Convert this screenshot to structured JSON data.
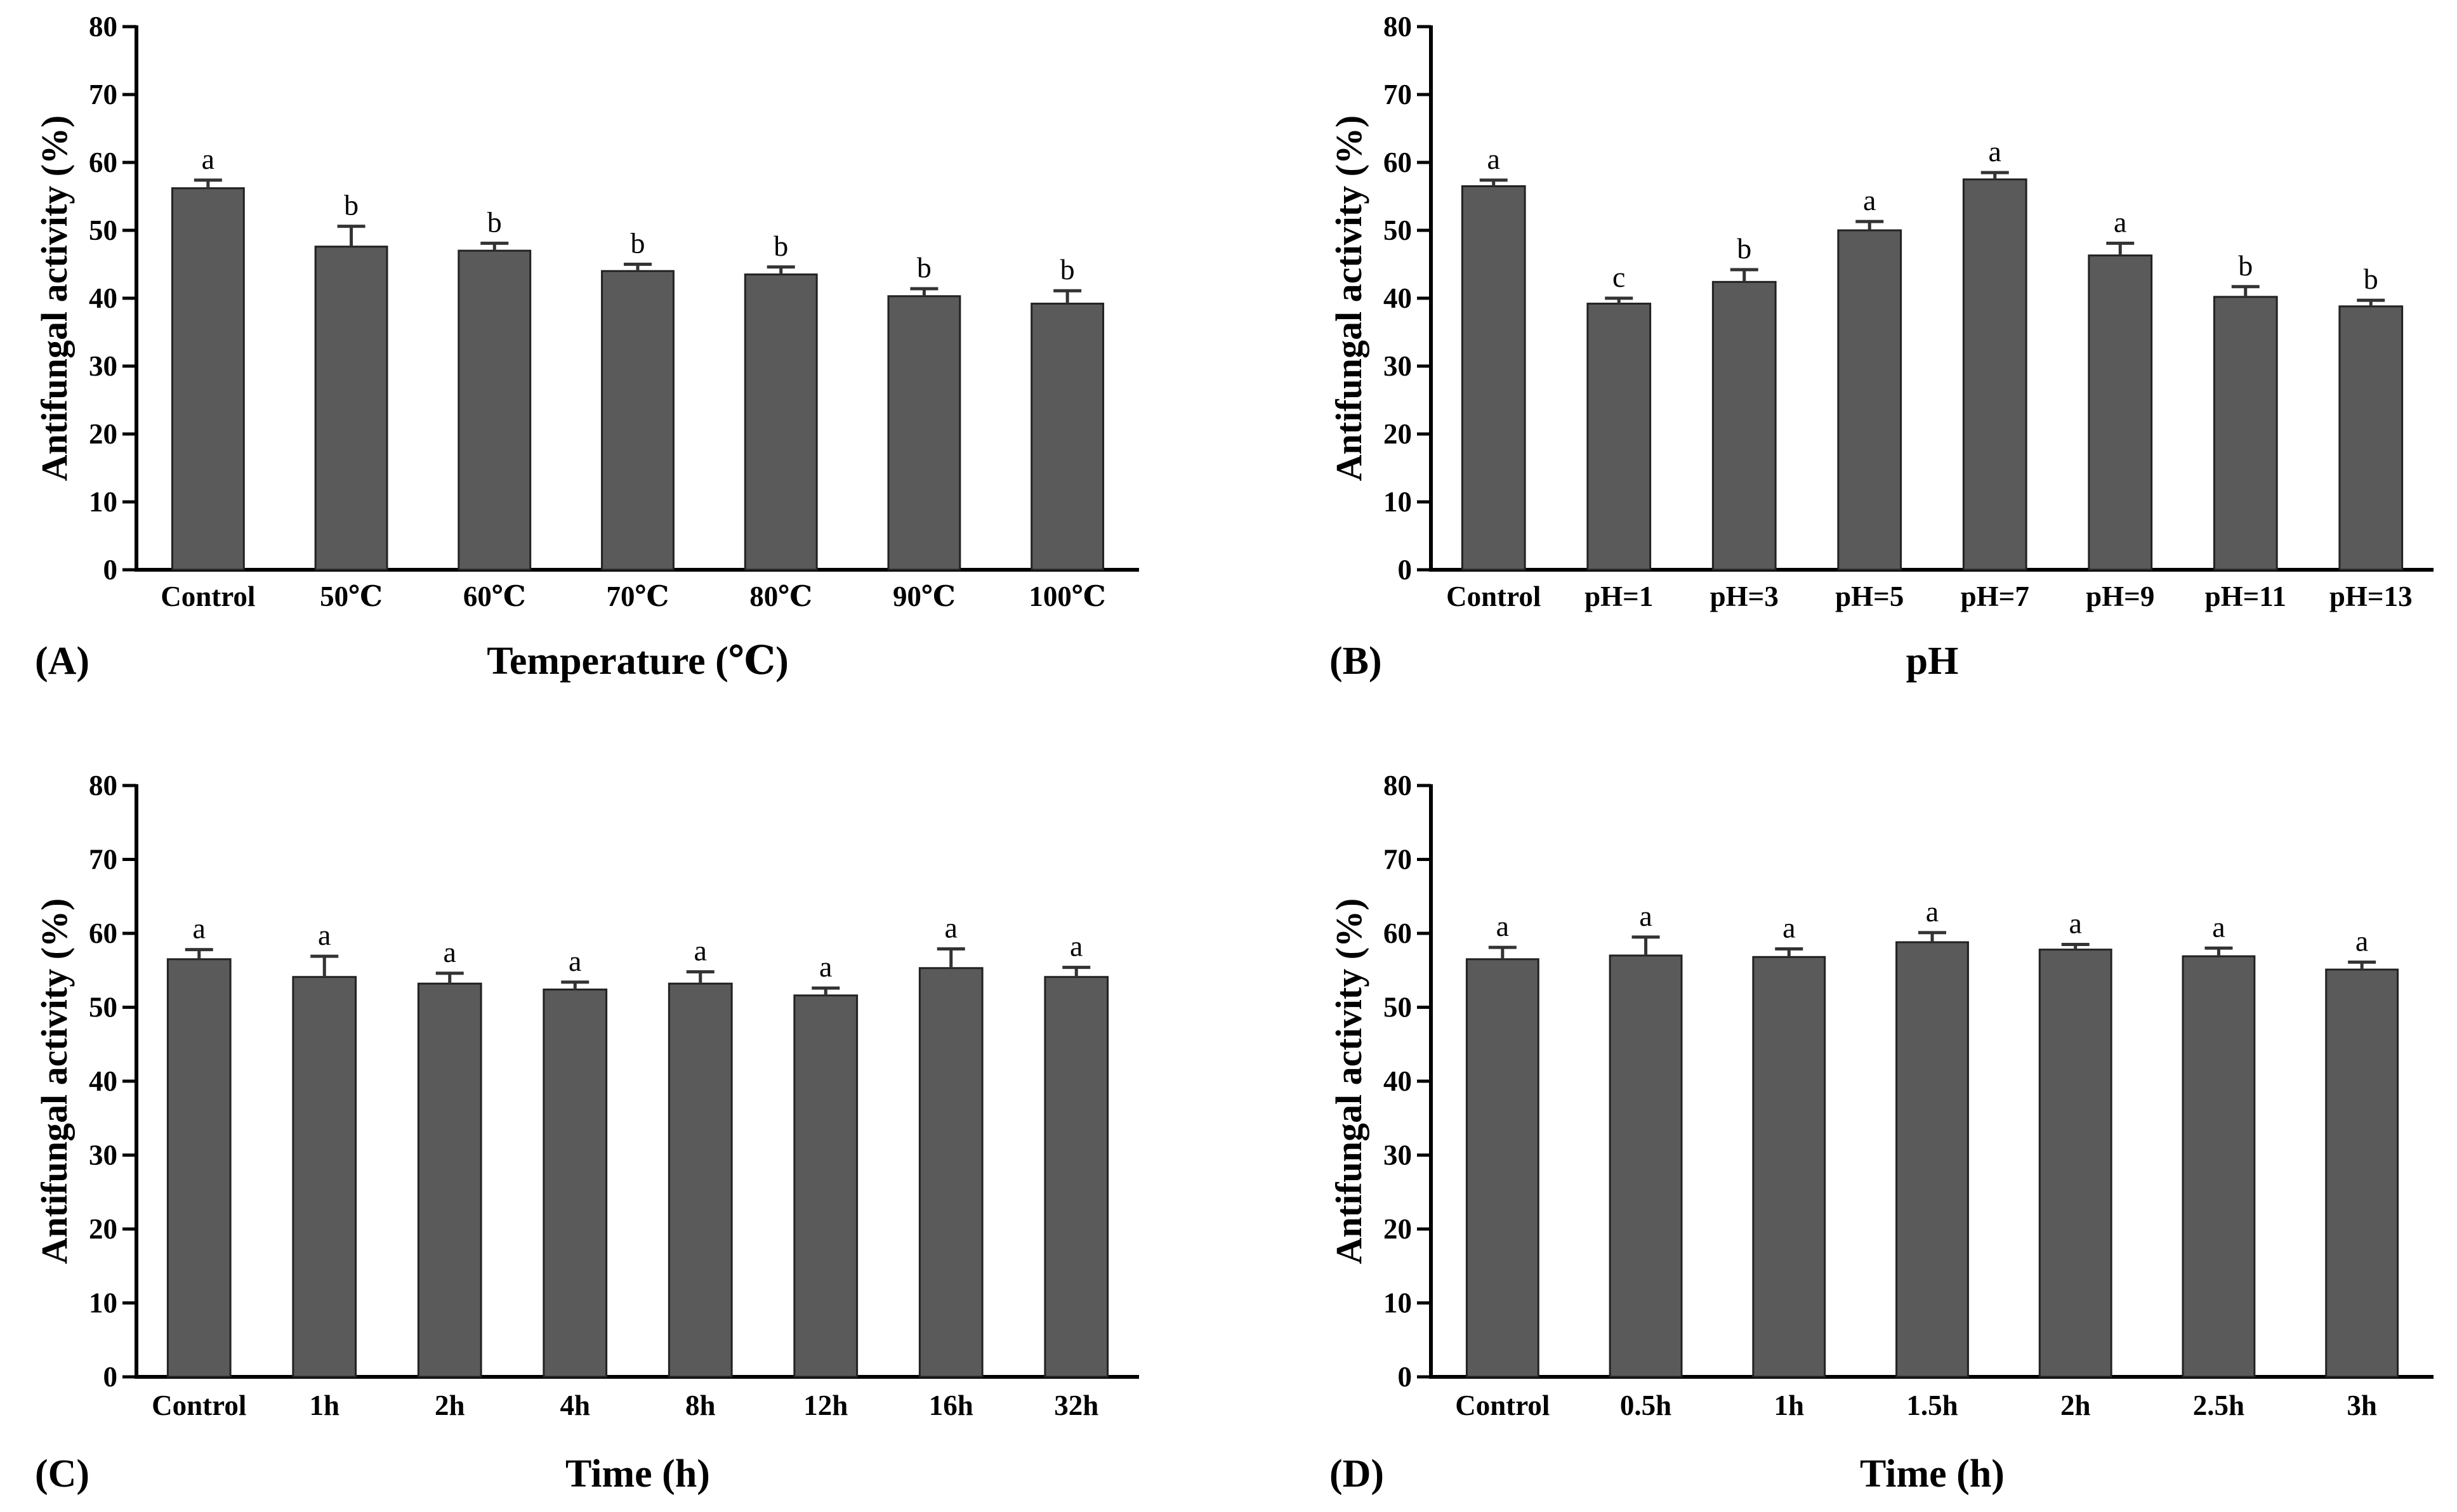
{
  "colors": {
    "bar": "#5a5a5a",
    "axis": "#000000",
    "error": "#333333"
  },
  "chart_data": [
    {
      "panel": "(A)",
      "type": "bar",
      "categories": [
        "Control",
        "50℃",
        "60℃",
        "70℃",
        "80℃",
        "90℃",
        "100℃"
      ],
      "values": [
        56.2,
        47.6,
        47.0,
        44.0,
        43.5,
        40.3,
        39.2
      ],
      "errors": [
        1.2,
        3.0,
        1.1,
        1.0,
        1.1,
        1.1,
        1.9
      ],
      "significance": [
        "a",
        "b",
        "b",
        "b",
        "b",
        "b",
        "b"
      ],
      "xlabel": "Temperature (℃)",
      "ylabel": "Antifungal activity (%)",
      "ylim": [
        0,
        80
      ],
      "yticks": [
        "0",
        "10",
        "20",
        "30",
        "40",
        "50",
        "60",
        "70",
        "80"
      ]
    },
    {
      "panel": "(B)",
      "type": "bar",
      "categories": [
        "Control",
        "pH=1",
        "pH=3",
        "pH=5",
        "pH=7",
        "pH=9",
        "pH=11",
        "pH=13"
      ],
      "values": [
        56.5,
        39.2,
        42.4,
        50.0,
        57.5,
        46.3,
        40.2,
        38.8
      ],
      "errors": [
        0.9,
        0.8,
        1.8,
        1.3,
        1.0,
        1.8,
        1.5,
        0.9
      ],
      "significance": [
        "a",
        "c",
        "b",
        "a",
        "a",
        "a",
        "b",
        "b"
      ],
      "xlabel": "pH",
      "ylabel": "Antifungal activity (%)",
      "ylim": [
        0,
        80
      ],
      "yticks": [
        "0",
        "10",
        "20",
        "30",
        "40",
        "50",
        "60",
        "70",
        "80"
      ]
    },
    {
      "panel": "(C)",
      "type": "bar",
      "categories": [
        "Control",
        "1h",
        "2h",
        "4h",
        "8h",
        "12h",
        "16h",
        "32h"
      ],
      "values": [
        56.5,
        54.1,
        53.2,
        52.4,
        53.2,
        51.6,
        55.3,
        54.1
      ],
      "errors": [
        1.3,
        2.8,
        1.4,
        1.0,
        1.6,
        1.0,
        2.6,
        1.3
      ],
      "significance": [
        "a",
        "a",
        "a",
        "a",
        "a",
        "a",
        "a",
        "a"
      ],
      "xlabel": "Time (h)",
      "ylabel": "Antifungal activity (%)",
      "ylim": [
        0,
        80
      ],
      "yticks": [
        "0",
        "10",
        "20",
        "30",
        "40",
        "50",
        "60",
        "70",
        "80"
      ]
    },
    {
      "panel": "(D)",
      "type": "bar",
      "categories": [
        "Control",
        "0.5h",
        "1h",
        "1.5h",
        "2h",
        "2.5h",
        "3h"
      ],
      "values": [
        56.5,
        57.0,
        56.8,
        58.8,
        57.8,
        56.9,
        55.1
      ],
      "errors": [
        1.6,
        2.5,
        1.1,
        1.3,
        0.7,
        1.1,
        1.0
      ],
      "significance": [
        "a",
        "a",
        "a",
        "a",
        "a",
        "a",
        "a"
      ],
      "xlabel": "Time (h)",
      "ylabel": "Antifungal activity (%)",
      "ylim": [
        0,
        80
      ],
      "yticks": [
        "0",
        "10",
        "20",
        "30",
        "40",
        "50",
        "60",
        "70",
        "80"
      ]
    }
  ]
}
